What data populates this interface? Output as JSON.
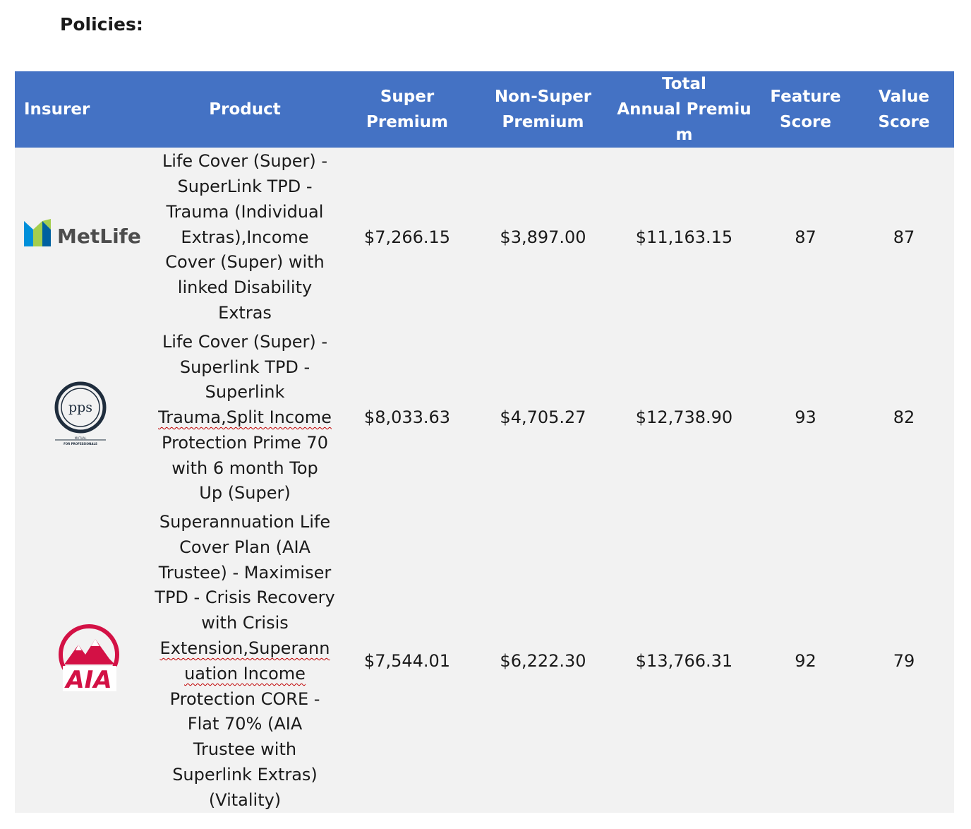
{
  "heading": "Policies:",
  "columns": {
    "insurer": "Insurer",
    "product": "Product",
    "super_premium": [
      "Super",
      "Premium"
    ],
    "non_super_premium": [
      "Non-Super",
      "Premium"
    ],
    "total_annual_premium": [
      "Total",
      "Annual Premiu",
      "m"
    ],
    "feature_score": [
      "Feature",
      "Score"
    ],
    "value_score": [
      "Value",
      "Score"
    ]
  },
  "rows": [
    {
      "insurer_logo": "MetLife",
      "insurer_icon": "metlife-logo-icon",
      "product_lines": [
        "Life Cover (Super) -",
        "SuperLink TPD -",
        "Trauma (Individual",
        "Extras),Income",
        "Cover (Super) with",
        "linked Disability",
        "Extras"
      ],
      "super_premium": "$7,266.15",
      "non_super_premium": "$3,897.00",
      "total_annual_premium": "$11,163.15",
      "feature_score": "87",
      "value_score": "87"
    },
    {
      "insurer_logo": "pps",
      "insurer_logo_sub": [
        "MUTUAL",
        "FOR PROFESSIONALS"
      ],
      "insurer_icon": "pps-logo-icon",
      "product_lines": [
        "Life Cover (Super) -",
        "Superlink TPD -",
        "Superlink",
        "Trauma,Split Income",
        "Protection Prime 70",
        "with 6 month Top",
        "Up (Super)"
      ],
      "super_premium": "$8,033.63",
      "non_super_premium": "$4,705.27",
      "total_annual_premium": "$12,738.90",
      "feature_score": "93",
      "value_score": "82"
    },
    {
      "insurer_logo": "AIA",
      "insurer_icon": "aia-logo-icon",
      "product_lines": [
        "Superannuation Life",
        "Cover Plan (AIA",
        "Trustee) - Maximiser",
        "TPD - Crisis Recovery",
        "with Crisis",
        "Extension,Superann",
        "uation Income",
        "Protection CORE -",
        "Flat 70% (AIA",
        "Trustee with",
        "Superlink Extras)",
        "(Vitality)"
      ],
      "super_premium": "$7,544.01",
      "non_super_premium": "$6,222.30",
      "total_annual_premium": "$13,766.31",
      "feature_score": "92",
      "value_score": "79"
    }
  ],
  "colors": {
    "header_bg": "#4472c4",
    "row_bg": "#f2f2f2",
    "aia_red": "#d31145",
    "metlife_blue": "#0090da",
    "metlife_green": "#a4ce4e"
  }
}
